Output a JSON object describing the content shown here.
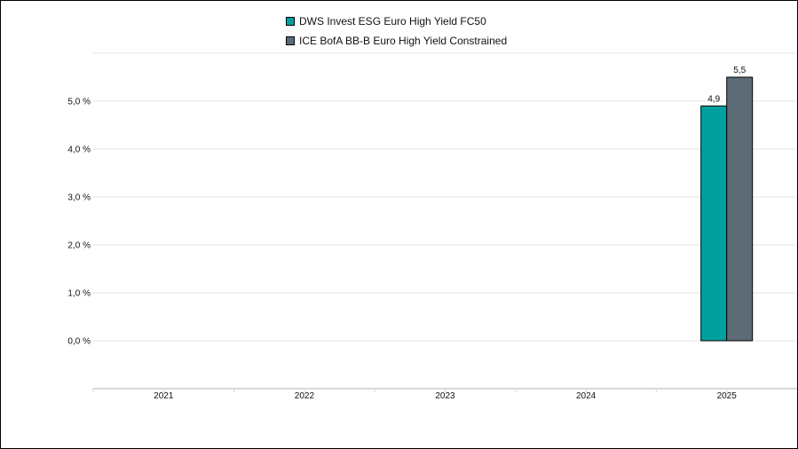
{
  "chart_data": {
    "type": "bar",
    "categories": [
      "2021",
      "2022",
      "2023",
      "2024",
      "2025"
    ],
    "series": [
      {
        "name": "DWS Invest ESG Euro High Yield FC50",
        "values": [
          null,
          null,
          null,
          null,
          4.9
        ],
        "labels": [
          "",
          "",
          "",
          "",
          "4,9"
        ],
        "color": "#00A09E"
      },
      {
        "name": "ICE BofA BB-B Euro High Yield Constrained",
        "values": [
          null,
          null,
          null,
          null,
          5.5
        ],
        "labels": [
          "",
          "",
          "",
          "",
          "5,5"
        ],
        "color": "#5C6B76"
      }
    ],
    "y_ticks": [
      {
        "value": 0,
        "label": "0,0 %"
      },
      {
        "value": 1,
        "label": "1,0 %"
      },
      {
        "value": 2,
        "label": "2,0 %"
      },
      {
        "value": 3,
        "label": "3,0 %"
      },
      {
        "value": 4,
        "label": "4,0 %"
      },
      {
        "value": 5,
        "label": "5,0 %"
      }
    ],
    "ylim": [
      -1,
      6
    ],
    "grid": true,
    "legend_position": "top-center"
  }
}
